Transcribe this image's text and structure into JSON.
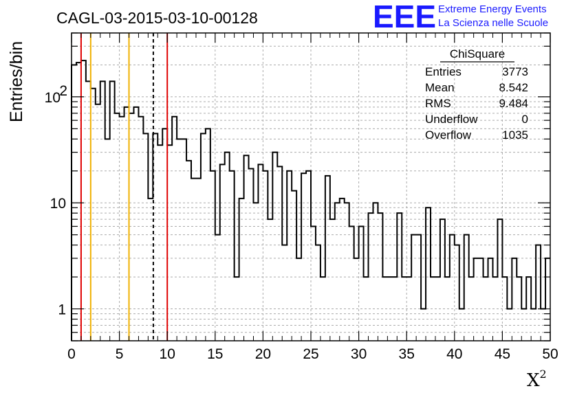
{
  "chart_data": {
    "type": "histogram",
    "title": "CAGL-03-2015-03-10-00128",
    "xlabel": "X",
    "xlabel_sup": "2",
    "ylabel": "Entries/bin",
    "xlim": [
      0,
      50
    ],
    "ylim": [
      0.5,
      400
    ],
    "yscale": "log",
    "grid": true,
    "bin_width": 0.5,
    "x_ticks": [
      0,
      5,
      10,
      15,
      20,
      25,
      30,
      35,
      40,
      45,
      50
    ],
    "y_ticks": [
      {
        "value": 1,
        "label": "1",
        "sup": ""
      },
      {
        "value": 10,
        "label": "10",
        "sup": ""
      },
      {
        "value": 100,
        "label": "10",
        "sup": "2"
      }
    ],
    "values": [
      200,
      210,
      220,
      140,
      120,
      85,
      140,
      40,
      140,
      70,
      65,
      80,
      70,
      80,
      65,
      45,
      11,
      45,
      35,
      50,
      35,
      65,
      40,
      40,
      25,
      17,
      17,
      45,
      50,
      20,
      5,
      23,
      30,
      20,
      2,
      11,
      28,
      21,
      10,
      23,
      20,
      7,
      30,
      22,
      4,
      20,
      13,
      3,
      19,
      20,
      6,
      4,
      2,
      18,
      7,
      10,
      11,
      10,
      6,
      3,
      6,
      2,
      8,
      10,
      8,
      2,
      2,
      2,
      8,
      2,
      2,
      5,
      5,
      1,
      9,
      2,
      2,
      7,
      2,
      5,
      4,
      1,
      5,
      2,
      3,
      3,
      2,
      3,
      2,
      7,
      2,
      1,
      3,
      2,
      1,
      2,
      1,
      4,
      1,
      3
    ],
    "vlines": [
      {
        "x": 1,
        "color": "#e00000",
        "style": "solid"
      },
      {
        "x": 2,
        "color": "#f0b000",
        "style": "solid"
      },
      {
        "x": 6,
        "color": "#f0b000",
        "style": "solid"
      },
      {
        "x": 8.542,
        "color": "#000000",
        "style": "dashed"
      },
      {
        "x": 10,
        "color": "#e00000",
        "style": "solid"
      }
    ],
    "stats": {
      "title": "ChiSquare",
      "rows": [
        {
          "label": "Entries",
          "value": "3773"
        },
        {
          "label": "Mean",
          "value": "8.542"
        },
        {
          "label": "RMS",
          "value": "9.484"
        },
        {
          "label": "Underflow",
          "value": "0"
        },
        {
          "label": "Overflow",
          "value": "1035"
        }
      ]
    }
  },
  "logo": {
    "big": "EEE",
    "line1": "Extreme Energy Events",
    "line2": "La Scienza nelle Scuole",
    "color": "#1a1aff"
  }
}
